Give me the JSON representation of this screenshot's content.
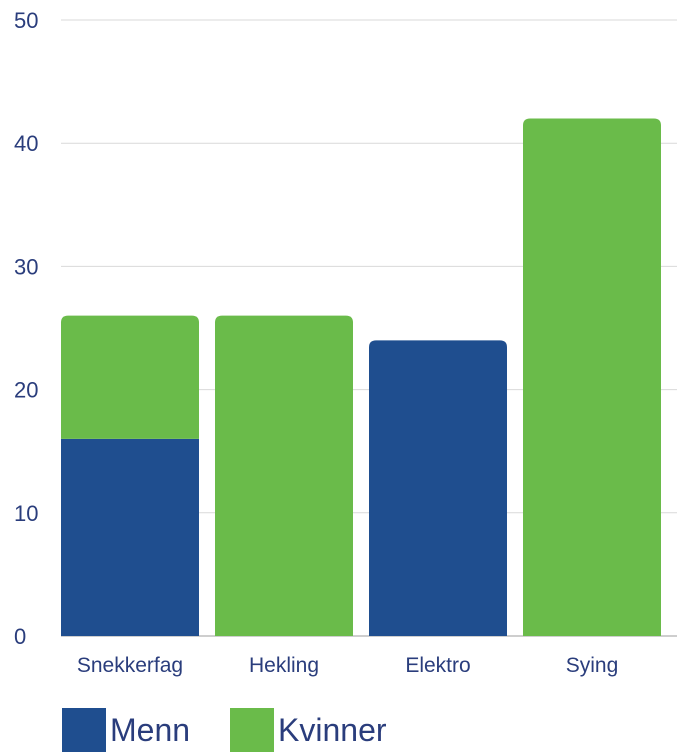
{
  "chart_data": {
    "type": "bar",
    "stacked": true,
    "categories": [
      "Snekkerfag",
      "Hekling",
      "Elektro",
      "Sying"
    ],
    "series": [
      {
        "name": "Menn",
        "color": "#1f4e8f",
        "values": [
          16,
          0,
          24,
          0
        ]
      },
      {
        "name": "Kvinner",
        "color": "#6abb4a",
        "values": [
          10,
          26,
          0,
          42
        ]
      }
    ],
    "ylim": [
      0,
      50
    ],
    "yticks": [
      0,
      10,
      20,
      30,
      40,
      50
    ],
    "grid": true,
    "legend_position": "bottom-left"
  }
}
